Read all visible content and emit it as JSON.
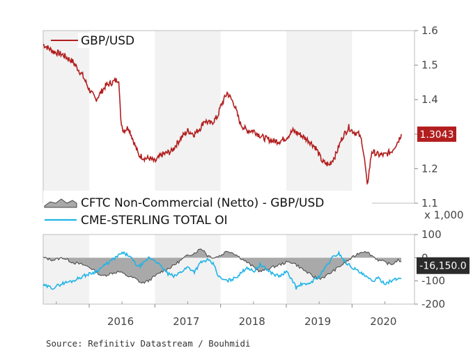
{
  "colors": {
    "gbpusd": "#b21e1e",
    "oi": "#1fb4e8",
    "cftc_fill": "#a9a9a9",
    "cftc_line": "#444444",
    "label_red": "#b21e1e",
    "label_dark": "#2b2b2b"
  },
  "source": "Source: Refinitiv Datastream / Bouhmidi",
  "chart_data": [
    {
      "type": "line",
      "legend": "GBP/USD",
      "ylim": [
        1.1,
        1.6
      ],
      "yticks": [
        "1.6",
        "1.5",
        "1.4",
        "1.3",
        "1.2",
        "1.1"
      ],
      "last_value_label": "1.3043",
      "series": [
        {
          "name": "GBP/USD",
          "x": [
            2015.3,
            2015.45,
            2015.6,
            2015.75,
            2015.9,
            2016.0,
            2016.1,
            2016.25,
            2016.35,
            2016.45,
            2016.48,
            2016.52,
            2016.6,
            2016.75,
            2016.85,
            2016.92,
            2017.0,
            2017.1,
            2017.25,
            2017.4,
            2017.5,
            2017.6,
            2017.7,
            2017.75,
            2017.85,
            2017.95,
            2018.0,
            2018.05,
            2018.1,
            2018.2,
            2018.3,
            2018.4,
            2018.5,
            2018.65,
            2018.8,
            2018.9,
            2019.0,
            2019.1,
            2019.2,
            2019.35,
            2019.45,
            2019.55,
            2019.65,
            2019.75,
            2019.85,
            2019.95,
            2020.0,
            2020.1,
            2020.15,
            2020.2,
            2020.23,
            2020.3,
            2020.4,
            2020.5,
            2020.6,
            2020.7,
            2020.75
          ],
          "values": [
            1.56,
            1.54,
            1.53,
            1.51,
            1.47,
            1.43,
            1.4,
            1.44,
            1.45,
            1.46,
            1.34,
            1.31,
            1.32,
            1.24,
            1.23,
            1.23,
            1.22,
            1.24,
            1.25,
            1.29,
            1.31,
            1.3,
            1.32,
            1.34,
            1.33,
            1.35,
            1.38,
            1.4,
            1.42,
            1.39,
            1.33,
            1.31,
            1.31,
            1.29,
            1.28,
            1.28,
            1.29,
            1.31,
            1.3,
            1.28,
            1.26,
            1.22,
            1.21,
            1.24,
            1.29,
            1.32,
            1.31,
            1.3,
            1.28,
            1.21,
            1.15,
            1.25,
            1.24,
            1.24,
            1.25,
            1.28,
            1.3
          ]
        }
      ]
    },
    {
      "type": "area",
      "legend_cftc": "CFTC Non-Commercial (Netto) - GBP/USD",
      "legend_oi": "CME-STERLING TOTAL OI",
      "multiplier_label": "x 1,000",
      "ylim": [
        -200,
        100
      ],
      "yticks": [
        "100",
        "0",
        "-100",
        "-200"
      ],
      "last_value_label": "-16,150.0",
      "xticks": [
        "2016",
        "2017",
        "2018",
        "2019",
        "2020"
      ],
      "series": [
        {
          "name": "CFTC Non-Commercial (Netto) - GBP/USD",
          "x": [
            2015.3,
            2015.45,
            2015.6,
            2015.75,
            2015.9,
            2016.0,
            2016.1,
            2016.2,
            2016.3,
            2016.45,
            2016.6,
            2016.7,
            2016.8,
            2016.9,
            2017.0,
            2017.1,
            2017.25,
            2017.4,
            2017.5,
            2017.6,
            2017.7,
            2017.75,
            2017.8,
            2017.9,
            2018.0,
            2018.1,
            2018.2,
            2018.3,
            2018.4,
            2018.5,
            2018.6,
            2018.7,
            2018.8,
            2018.9,
            2019.0,
            2019.1,
            2019.2,
            2019.3,
            2019.4,
            2019.5,
            2019.6,
            2019.7,
            2019.8,
            2019.9,
            2020.0,
            2020.1,
            2020.2,
            2020.3,
            2020.4,
            2020.5,
            2020.6,
            2020.7,
            2020.75
          ],
          "values": [
            0,
            -10,
            0,
            -20,
            -30,
            -40,
            -60,
            -80,
            -70,
            -60,
            -80,
            -90,
            -110,
            -100,
            -80,
            -60,
            -40,
            -10,
            10,
            20,
            40,
            30,
            10,
            0,
            10,
            30,
            20,
            0,
            -20,
            -40,
            -60,
            -50,
            -40,
            -30,
            -20,
            -20,
            -40,
            -60,
            -80,
            -90,
            -80,
            -60,
            -40,
            -20,
            0,
            20,
            30,
            10,
            -10,
            -20,
            -30,
            -10,
            -16.15
          ]
        },
        {
          "name": "CME-STERLING TOTAL OI",
          "x": [
            2015.3,
            2015.45,
            2015.6,
            2015.75,
            2015.9,
            2016.0,
            2016.1,
            2016.2,
            2016.3,
            2016.4,
            2016.5,
            2016.6,
            2016.75,
            2016.85,
            2016.9,
            2017.0,
            2017.1,
            2017.2,
            2017.3,
            2017.4,
            2017.5,
            2017.6,
            2017.7,
            2017.8,
            2017.9,
            2017.95,
            2018.0,
            2018.1,
            2018.2,
            2018.3,
            2018.4,
            2018.5,
            2018.6,
            2018.7,
            2018.8,
            2018.9,
            2019.0,
            2019.1,
            2019.15,
            2019.25,
            2019.3,
            2019.4,
            2019.5,
            2019.6,
            2019.7,
            2019.8,
            2019.9,
            2020.0,
            2020.1,
            2020.2,
            2020.3,
            2020.4,
            2020.5,
            2020.6,
            2020.7,
            2020.75
          ],
          "values": [
            -120,
            -130,
            -110,
            -100,
            -80,
            -70,
            -60,
            -40,
            -20,
            0,
            20,
            10,
            -40,
            -20,
            0,
            -10,
            -40,
            -70,
            -80,
            -60,
            -40,
            -60,
            -20,
            -10,
            -30,
            -70,
            -90,
            -100,
            -90,
            -70,
            -40,
            -60,
            -30,
            -50,
            -70,
            -80,
            -60,
            -100,
            -130,
            -110,
            -120,
            -100,
            -80,
            -40,
            0,
            20,
            -20,
            -40,
            -60,
            -80,
            -100,
            -90,
            -110,
            -100,
            -90,
            -90
          ]
        }
      ]
    }
  ]
}
